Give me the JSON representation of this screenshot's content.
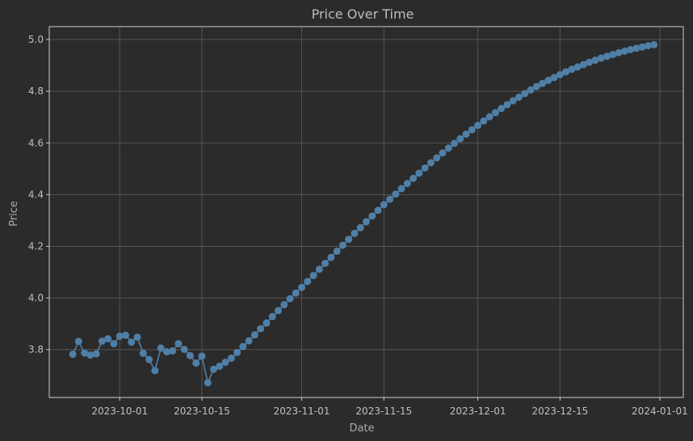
{
  "chart_data": {
    "type": "line",
    "title": "Price Over Time",
    "xlabel": "Date",
    "ylabel": "Price",
    "x_ticks": [
      "2023-10-01",
      "2023-10-15",
      "2023-11-01",
      "2023-11-15",
      "2023-12-01",
      "2023-12-15",
      "2024-01-01"
    ],
    "y_ticks": [
      "3.8",
      "4.0",
      "4.2",
      "4.4",
      "4.6",
      "4.8",
      "5.0"
    ],
    "xlim": [
      "2023-09-19",
      "2024-01-05"
    ],
    "ylim": [
      3.615,
      5.05
    ],
    "grid": true,
    "colors": {
      "background": "#2b2b2b",
      "axes": "#cccccc",
      "grid": "#555555",
      "series": "#4f7fa6"
    },
    "series": [
      {
        "x": [
          "2023-09-23",
          "2023-09-24",
          "2023-09-25",
          "2023-09-26",
          "2023-09-27",
          "2023-09-28",
          "2023-09-29",
          "2023-09-30",
          "2023-10-01",
          "2023-10-02",
          "2023-10-03",
          "2023-10-04",
          "2023-10-05",
          "2023-10-06",
          "2023-10-07",
          "2023-10-08",
          "2023-10-09",
          "2023-10-10",
          "2023-10-11",
          "2023-10-12",
          "2023-10-13",
          "2023-10-14",
          "2023-10-15",
          "2023-10-16",
          "2023-10-17",
          "2023-10-18",
          "2023-10-19",
          "2023-10-20",
          "2023-10-21",
          "2023-10-22",
          "2023-10-23",
          "2023-10-24",
          "2023-10-25",
          "2023-10-26",
          "2023-10-27",
          "2023-10-28",
          "2023-10-29",
          "2023-10-30",
          "2023-10-31",
          "2023-11-01",
          "2023-11-02",
          "2023-11-03",
          "2023-11-04",
          "2023-11-05",
          "2023-11-06",
          "2023-11-07",
          "2023-11-08",
          "2023-11-09",
          "2023-11-10",
          "2023-11-11",
          "2023-11-12",
          "2023-11-13",
          "2023-11-14",
          "2023-11-15",
          "2023-11-16",
          "2023-11-17",
          "2023-11-18",
          "2023-11-19",
          "2023-11-20",
          "2023-11-21",
          "2023-11-22",
          "2023-11-23",
          "2023-11-24",
          "2023-11-25",
          "2023-11-26",
          "2023-11-27",
          "2023-11-28",
          "2023-11-29",
          "2023-11-30",
          "2023-12-01",
          "2023-12-02",
          "2023-12-03",
          "2023-12-04",
          "2023-12-05",
          "2023-12-06",
          "2023-12-07",
          "2023-12-08",
          "2023-12-09",
          "2023-12-10",
          "2023-12-11",
          "2023-12-12",
          "2023-12-13",
          "2023-12-14",
          "2023-12-15",
          "2023-12-16",
          "2023-12-17",
          "2023-12-18",
          "2023-12-19",
          "2023-12-20",
          "2023-12-21",
          "2023-12-22",
          "2023-12-23",
          "2023-12-24",
          "2023-12-25",
          "2023-12-26",
          "2023-12-27",
          "2023-12-28",
          "2023-12-29",
          "2023-12-30",
          "2023-12-31"
        ],
        "y": [
          3.782,
          3.832,
          3.787,
          3.779,
          3.784,
          3.833,
          3.842,
          3.823,
          3.852,
          3.856,
          3.829,
          3.848,
          3.786,
          3.762,
          3.719,
          3.806,
          3.792,
          3.795,
          3.823,
          3.801,
          3.777,
          3.748,
          3.775,
          3.672,
          3.724,
          3.736,
          3.751,
          3.767,
          3.789,
          3.812,
          3.834,
          3.857,
          3.881,
          3.903,
          3.928,
          3.951,
          3.974,
          3.997,
          4.019,
          4.041,
          4.064,
          4.087,
          4.111,
          4.134,
          4.157,
          4.181,
          4.204,
          4.227,
          4.25,
          4.272,
          4.295,
          4.317,
          4.339,
          4.361,
          4.382,
          4.402,
          4.423,
          4.443,
          4.463,
          4.483,
          4.503,
          4.523,
          4.542,
          4.561,
          4.58,
          4.598,
          4.616,
          4.634,
          4.651,
          4.668,
          4.685,
          4.701,
          4.717,
          4.733,
          4.748,
          4.763,
          4.777,
          4.791,
          4.805,
          4.818,
          4.83,
          4.842,
          4.853,
          4.864,
          4.875,
          4.885,
          4.894,
          4.903,
          4.912,
          4.92,
          4.928,
          4.935,
          4.942,
          4.949,
          4.955,
          4.961,
          4.966,
          4.971,
          4.976,
          4.98
        ]
      }
    ]
  }
}
